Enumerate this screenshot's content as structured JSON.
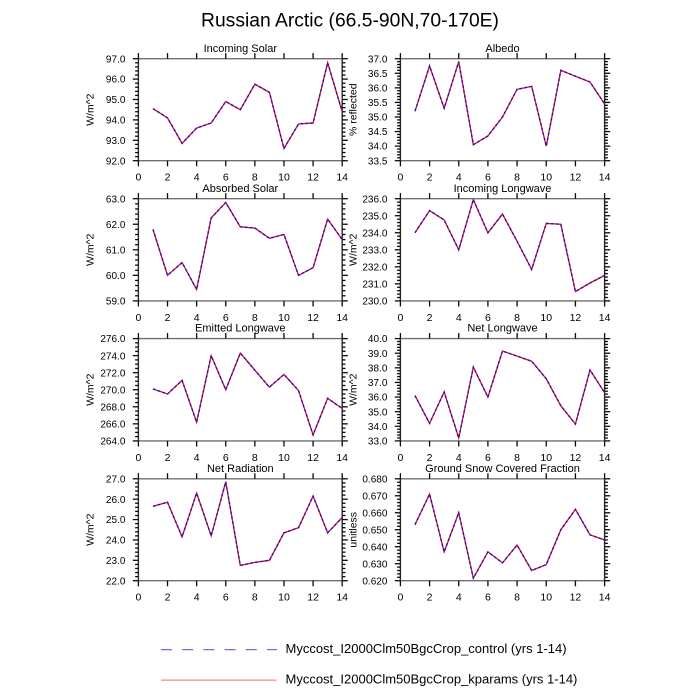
{
  "title": "Russian Arctic (66.5-90N,70-170E)",
  "legend": {
    "entries": [
      {
        "label": "Myccost_I2000Clm50BgcCrop_control (yrs 1-14)",
        "line_style": "dashed",
        "color": "#6e6ee0"
      },
      {
        "label": "Myccost_I2000Clm50BgcCrop_kparams (yrs 1-14)",
        "line_style": "solid",
        "color": "#f08a8a"
      }
    ]
  },
  "series_colors": {
    "control": "#1212d2",
    "kparams": "#e81212"
  },
  "chart_data": [
    {
      "type": "line",
      "title": "Incoming Solar",
      "ylabel": "W/m^2",
      "ylabel_side": "left",
      "xlim": [
        0,
        14
      ],
      "ylim": [
        92.0,
        97.0
      ],
      "ytick_major": 1.0,
      "ytick_minor": 0.2,
      "ydecimals": 1,
      "xticks": [
        0,
        2,
        4,
        6,
        8,
        10,
        12,
        14
      ],
      "x": [
        1,
        2,
        3,
        4,
        5,
        6,
        7,
        8,
        9,
        10,
        11,
        12,
        13,
        14
      ],
      "series": [
        {
          "name": "Myccost_I2000Clm50BgcCrop_control",
          "line_style": "dashed",
          "color": "#1212d2",
          "values": [
            94.55,
            94.1,
            92.85,
            93.6,
            93.85,
            94.9,
            94.5,
            95.75,
            95.35,
            92.6,
            93.8,
            93.85,
            96.8,
            94.4
          ]
        },
        {
          "name": "Myccost_I2000Clm50BgcCrop_kparams",
          "line_style": "solid",
          "color": "#e81212",
          "values": [
            94.55,
            94.1,
            92.85,
            93.6,
            93.85,
            94.9,
            94.5,
            95.75,
            95.35,
            92.6,
            93.8,
            93.85,
            96.8,
            94.4
          ]
        }
      ]
    },
    {
      "type": "line",
      "title": "Albedo",
      "ylabel": "% reflected",
      "ylabel_side": "left",
      "xlim": [
        0,
        14
      ],
      "ylim": [
        33.5,
        37.0
      ],
      "ytick_major": 0.5,
      "ytick_minor": 0.1,
      "ydecimals": 1,
      "xticks": [
        0,
        2,
        4,
        6,
        8,
        10,
        12,
        14
      ],
      "x": [
        1,
        2,
        3,
        4,
        5,
        6,
        7,
        8,
        9,
        10,
        11,
        12,
        13,
        14
      ],
      "series": [
        {
          "name": "Myccost_I2000Clm50BgcCrop_control",
          "line_style": "dashed",
          "color": "#1212d2",
          "values": [
            35.2,
            36.75,
            35.3,
            36.9,
            34.05,
            34.35,
            35.0,
            35.95,
            36.05,
            34.0,
            36.6,
            36.4,
            36.2,
            35.45
          ]
        },
        {
          "name": "Myccost_I2000Clm50BgcCrop_kparams",
          "line_style": "solid",
          "color": "#e81212",
          "values": [
            35.2,
            36.75,
            35.3,
            36.9,
            34.05,
            34.35,
            35.0,
            35.95,
            36.05,
            34.0,
            36.6,
            36.4,
            36.2,
            35.45
          ]
        }
      ]
    },
    {
      "type": "line",
      "title": "Absorbed Solar",
      "ylabel": "W/m^2",
      "ylabel_side": "left",
      "xlim": [
        0,
        14
      ],
      "ylim": [
        59.0,
        63.0
      ],
      "ytick_major": 1.0,
      "ytick_minor": 0.2,
      "ydecimals": 1,
      "xticks": [
        0,
        2,
        4,
        6,
        8,
        10,
        12,
        14
      ],
      "x": [
        1,
        2,
        3,
        4,
        5,
        6,
        7,
        8,
        9,
        10,
        11,
        12,
        13,
        14
      ],
      "series": [
        {
          "name": "Myccost_I2000Clm50BgcCrop_control",
          "line_style": "dashed",
          "color": "#1212d2",
          "values": [
            61.8,
            60.0,
            60.5,
            59.45,
            62.25,
            62.85,
            61.9,
            61.85,
            61.45,
            61.6,
            60.0,
            60.3,
            62.2,
            61.4
          ]
        },
        {
          "name": "Myccost_I2000Clm50BgcCrop_kparams",
          "line_style": "solid",
          "color": "#e81212",
          "values": [
            61.8,
            60.0,
            60.5,
            59.45,
            62.25,
            62.85,
            61.9,
            61.85,
            61.45,
            61.6,
            60.0,
            60.3,
            62.2,
            61.4
          ]
        }
      ]
    },
    {
      "type": "line",
      "title": "Incoming Longwave",
      "ylabel": "W/m^2",
      "ylabel_side": "left",
      "xlim": [
        0,
        14
      ],
      "ylim": [
        230.0,
        236.0
      ],
      "ytick_major": 1.0,
      "ytick_minor": 0.2,
      "ydecimals": 1,
      "xticks": [
        0,
        2,
        4,
        6,
        8,
        10,
        12,
        14
      ],
      "x": [
        1,
        2,
        3,
        4,
        5,
        6,
        7,
        8,
        9,
        10,
        11,
        12,
        13,
        14
      ],
      "series": [
        {
          "name": "Myccost_I2000Clm50BgcCrop_control",
          "line_style": "dashed",
          "color": "#1212d2",
          "values": [
            234.0,
            235.3,
            234.75,
            233.0,
            235.95,
            234.0,
            235.1,
            233.5,
            231.85,
            234.55,
            234.5,
            230.55,
            231.05,
            231.5
          ]
        },
        {
          "name": "Myccost_I2000Clm50BgcCrop_kparams",
          "line_style": "solid",
          "color": "#e81212",
          "values": [
            234.0,
            235.3,
            234.75,
            233.0,
            235.95,
            234.0,
            235.1,
            233.5,
            231.85,
            234.55,
            234.5,
            230.55,
            231.05,
            231.5
          ]
        }
      ]
    },
    {
      "type": "line",
      "title": "Emitted Longwave",
      "ylabel": "W/m^2",
      "ylabel_side": "left",
      "xlim": [
        0,
        14
      ],
      "ylim": [
        264.0,
        276.0
      ],
      "ytick_major": 2.0,
      "ytick_minor": 0.5,
      "ydecimals": 1,
      "xticks": [
        0,
        2,
        4,
        6,
        8,
        10,
        12,
        14
      ],
      "x": [
        1,
        2,
        3,
        4,
        5,
        6,
        7,
        8,
        9,
        10,
        11,
        12,
        13,
        14
      ],
      "series": [
        {
          "name": "Myccost_I2000Clm50BgcCrop_control",
          "line_style": "dashed",
          "color": "#1212d2",
          "values": [
            270.1,
            269.5,
            271.1,
            266.2,
            274.0,
            270.0,
            274.3,
            272.3,
            270.3,
            271.8,
            269.9,
            264.7,
            269.0,
            267.8
          ]
        },
        {
          "name": "Myccost_I2000Clm50BgcCrop_kparams",
          "line_style": "solid",
          "color": "#e81212",
          "values": [
            270.1,
            269.5,
            271.1,
            266.2,
            274.0,
            270.0,
            274.3,
            272.3,
            270.3,
            271.8,
            269.9,
            264.7,
            269.0,
            267.8
          ]
        }
      ]
    },
    {
      "type": "line",
      "title": "Net Longwave",
      "ylabel": "W/m^2",
      "ylabel_side": "left",
      "xlim": [
        0,
        14
      ],
      "ylim": [
        33.0,
        40.0
      ],
      "ytick_major": 1.0,
      "ytick_minor": 0.2,
      "ydecimals": 1,
      "xticks": [
        0,
        2,
        4,
        6,
        8,
        10,
        12,
        14
      ],
      "x": [
        1,
        2,
        3,
        4,
        5,
        6,
        7,
        8,
        9,
        10,
        11,
        12,
        13,
        14
      ],
      "series": [
        {
          "name": "Myccost_I2000Clm50BgcCrop_control",
          "line_style": "dashed",
          "color": "#1212d2",
          "values": [
            36.1,
            34.2,
            36.35,
            33.2,
            38.05,
            36.0,
            39.15,
            38.8,
            38.45,
            37.25,
            35.4,
            34.15,
            37.85,
            36.3
          ]
        },
        {
          "name": "Myccost_I2000Clm50BgcCrop_kparams",
          "line_style": "solid",
          "color": "#e81212",
          "values": [
            36.1,
            34.2,
            36.35,
            33.2,
            38.05,
            36.0,
            39.15,
            38.8,
            38.45,
            37.25,
            35.4,
            34.15,
            37.85,
            36.3
          ]
        }
      ]
    },
    {
      "type": "line",
      "title": "Net Radiation",
      "ylabel": "W/m^2",
      "ylabel_side": "left",
      "xlim": [
        0,
        14
      ],
      "ylim": [
        22.0,
        27.0
      ],
      "ytick_major": 1.0,
      "ytick_minor": 0.2,
      "ydecimals": 1,
      "xticks": [
        0,
        2,
        4,
        6,
        8,
        10,
        12,
        14
      ],
      "x": [
        1,
        2,
        3,
        4,
        5,
        6,
        7,
        8,
        9,
        10,
        11,
        12,
        13,
        14
      ],
      "series": [
        {
          "name": "Myccost_I2000Clm50BgcCrop_control",
          "line_style": "dashed",
          "color": "#1212d2",
          "values": [
            25.65,
            25.85,
            24.15,
            26.3,
            24.2,
            26.85,
            22.75,
            22.9,
            23.0,
            24.35,
            24.6,
            26.15,
            24.35,
            25.1
          ]
        },
        {
          "name": "Myccost_I2000Clm50BgcCrop_kparams",
          "line_style": "solid",
          "color": "#e81212",
          "values": [
            25.65,
            25.85,
            24.15,
            26.3,
            24.2,
            26.85,
            22.75,
            22.9,
            23.0,
            24.35,
            24.6,
            26.15,
            24.35,
            25.1
          ]
        }
      ]
    },
    {
      "type": "line",
      "title": "Ground Snow Covered Fraction",
      "ylabel": "unitless",
      "ylabel_side": "left",
      "xlim": [
        0,
        14
      ],
      "ylim": [
        0.62,
        0.68
      ],
      "ytick_major": 0.01,
      "ytick_minor": 0.002,
      "ydecimals": 3,
      "xticks": [
        0,
        2,
        4,
        6,
        8,
        10,
        12,
        14
      ],
      "x": [
        1,
        2,
        3,
        4,
        5,
        6,
        7,
        8,
        9,
        10,
        11,
        12,
        13,
        14
      ],
      "series": [
        {
          "name": "Myccost_I2000Clm50BgcCrop_control",
          "line_style": "dashed",
          "color": "#1212d2",
          "values": [
            0.653,
            0.671,
            0.637,
            0.66,
            0.6215,
            0.637,
            0.6305,
            0.641,
            0.626,
            0.6295,
            0.65,
            0.662,
            0.647,
            0.644
          ]
        },
        {
          "name": "Myccost_I2000Clm50BgcCrop_kparams",
          "line_style": "solid",
          "color": "#e81212",
          "values": [
            0.653,
            0.671,
            0.637,
            0.66,
            0.6215,
            0.637,
            0.6305,
            0.641,
            0.626,
            0.6295,
            0.65,
            0.662,
            0.647,
            0.644
          ]
        }
      ]
    }
  ]
}
